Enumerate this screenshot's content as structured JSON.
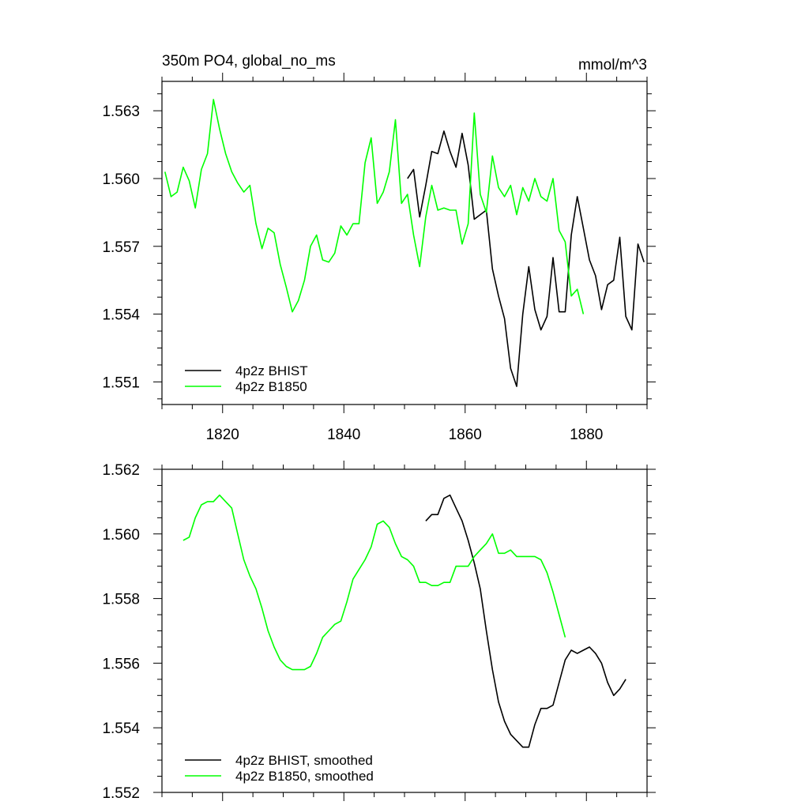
{
  "chart_data": [
    {
      "type": "line",
      "title": "350m PO4, global_no_ms",
      "units": "mmol/m^3",
      "xlim": [
        1810,
        1890
      ],
      "ylim": [
        1.55,
        1.5643
      ],
      "x_ticks": [
        1820,
        1840,
        1860,
        1880
      ],
      "y_ticks": [
        1.551,
        1.554,
        1.557,
        1.56,
        1.563
      ],
      "x_tick_labels": [
        "1820",
        "1840",
        "1860",
        "1880"
      ],
      "y_tick_labels": [
        "1.551",
        "1.554",
        "1.557",
        "1.560",
        "1.563"
      ],
      "legend": {
        "position": "bottom-left"
      },
      "series": [
        {
          "name": "4p2z BHIST",
          "color": "#000000",
          "x_start": 1850.5,
          "values": [
            1.56,
            1.5604,
            1.5583,
            1.5597,
            1.5612,
            1.5611,
            1.5621,
            1.5612,
            1.5605,
            1.562,
            1.5606,
            1.5582,
            1.5584,
            1.5586,
            1.556,
            1.5548,
            1.5538,
            1.5516,
            1.5508,
            1.554,
            1.5561,
            1.5542,
            1.5533,
            1.5539,
            1.5565,
            1.5541,
            1.5541,
            1.5575,
            1.5592,
            1.5578,
            1.5564,
            1.5557,
            1.5542,
            1.5553,
            1.5555,
            1.5574,
            1.5539,
            1.5533,
            1.5571,
            1.5563
          ]
        },
        {
          "name": "4p2z B1850",
          "color": "#00ff00",
          "x_start": 1810.5,
          "values": [
            1.5603,
            1.5592,
            1.5594,
            1.5605,
            1.5599,
            1.5587,
            1.5604,
            1.5611,
            1.5635,
            1.5622,
            1.5611,
            1.5603,
            1.5598,
            1.5594,
            1.5597,
            1.558,
            1.5569,
            1.5578,
            1.5576,
            1.5562,
            1.5552,
            1.5541,
            1.5546,
            1.5555,
            1.557,
            1.5575,
            1.5564,
            1.5563,
            1.5567,
            1.5579,
            1.5575,
            1.558,
            1.558,
            1.5607,
            1.5618,
            1.5589,
            1.5594,
            1.5603,
            1.5626,
            1.5589,
            1.5593,
            1.5575,
            1.5561,
            1.5583,
            1.5597,
            1.5586,
            1.5587,
            1.5586,
            1.5586,
            1.5571,
            1.558,
            1.5629,
            1.5593,
            1.5585,
            1.561,
            1.5596,
            1.5592,
            1.5597,
            1.5584,
            1.5596,
            1.559,
            1.56,
            1.5592,
            1.559,
            1.56,
            1.5577,
            1.5572,
            1.5548,
            1.5551,
            1.554
          ]
        }
      ]
    },
    {
      "type": "line",
      "title": "",
      "xlim": [
        1810,
        1890
      ],
      "ylim": [
        1.552,
        1.562
      ],
      "x_ticks": [
        1820,
        1840,
        1860,
        1880
      ],
      "y_ticks": [
        1.552,
        1.554,
        1.556,
        1.558,
        1.56,
        1.562
      ],
      "y_tick_labels": [
        "1.552",
        "1.554",
        "1.556",
        "1.558",
        "1.560",
        "1.562"
      ],
      "legend": {
        "position": "bottom-left"
      },
      "series": [
        {
          "name": "4p2z BHIST, smoothed",
          "color": "#000000",
          "x_start": 1853.5,
          "values": [
            1.5604,
            1.5606,
            1.5606,
            1.5611,
            1.5612,
            1.5608,
            1.5604,
            1.5598,
            1.5591,
            1.5583,
            1.557,
            1.5558,
            1.5548,
            1.5542,
            1.5538,
            1.5536,
            1.5534,
            1.5534,
            1.5541,
            1.5546,
            1.5546,
            1.5547,
            1.5554,
            1.5561,
            1.5564,
            1.5563,
            1.5564,
            1.5565,
            1.5563,
            1.556,
            1.5554,
            1.555,
            1.5552,
            1.5555
          ]
        },
        {
          "name": "4p2z B1850, smoothed",
          "color": "#00ff00",
          "x_start": 1813.5,
          "values": [
            1.5598,
            1.5599,
            1.5605,
            1.5609,
            1.561,
            1.561,
            1.5612,
            1.561,
            1.5608,
            1.56,
            1.5592,
            1.5587,
            1.5583,
            1.5577,
            1.557,
            1.5565,
            1.5561,
            1.5559,
            1.5558,
            1.5558,
            1.5558,
            1.5559,
            1.5563,
            1.5568,
            1.557,
            1.5572,
            1.5573,
            1.5579,
            1.5586,
            1.5589,
            1.5592,
            1.5596,
            1.5603,
            1.5604,
            1.5602,
            1.5597,
            1.5593,
            1.5592,
            1.559,
            1.5585,
            1.5585,
            1.5584,
            1.5584,
            1.5585,
            1.5585,
            1.559,
            1.559,
            1.559,
            1.5593,
            1.5595,
            1.5597,
            1.56,
            1.5594,
            1.5594,
            1.5595,
            1.5593,
            1.5593,
            1.5593,
            1.5593,
            1.5592,
            1.5588,
            1.5582,
            1.5575,
            1.5568
          ]
        }
      ]
    }
  ]
}
